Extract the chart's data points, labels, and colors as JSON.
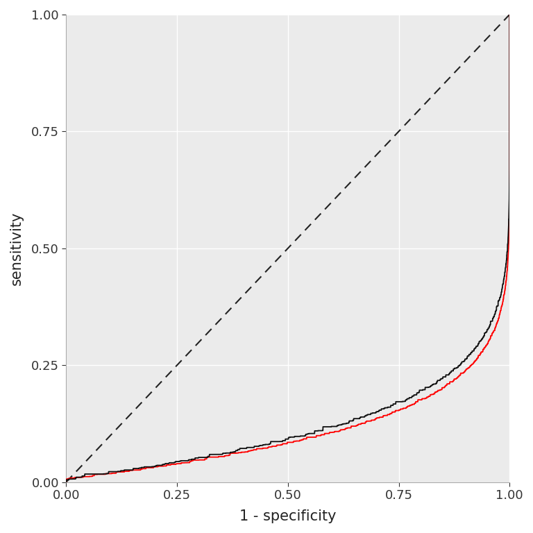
{
  "xlabel": "1 - specificity",
  "ylabel": "sensitivity",
  "xlim": [
    0,
    1
  ],
  "ylim": [
    0,
    1
  ],
  "xticks": [
    0.0,
    0.25,
    0.5,
    0.75,
    1.0
  ],
  "yticks": [
    0.0,
    0.25,
    0.5,
    0.75,
    1.0
  ],
  "background_color": "#EBEBEB",
  "grid_color": "#FFFFFF",
  "diag_color": "#222222",
  "cv_color": "#111111",
  "train_color": "#FF0000",
  "cv_linewidth": 1.3,
  "train_linewidth": 1.3,
  "xlabel_fontsize": 15,
  "ylabel_fontsize": 15,
  "tick_fontsize": 13
}
